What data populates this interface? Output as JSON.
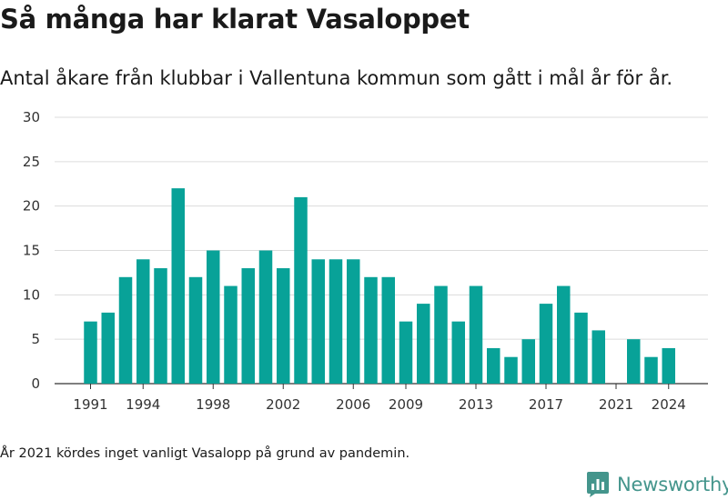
{
  "title": "Så många har klarat Vasaloppet",
  "subtitle": "Antal åkare från klubbar i Vallentuna kommun som gått i mål år för år.",
  "footnote": "År 2021 kördes inget vanligt Vasalopp på grund av pandemin.",
  "brand": {
    "name": "Newsworthy",
    "icon": "newsworthy-logo-icon",
    "color": "#44958c"
  },
  "chart_data": {
    "type": "bar",
    "bar_color": "#08a298",
    "x": [
      1991,
      1992,
      1993,
      1994,
      1995,
      1996,
      1997,
      1998,
      1999,
      2000,
      2001,
      2002,
      2003,
      2004,
      2005,
      2006,
      2007,
      2008,
      2009,
      2010,
      2011,
      2012,
      2013,
      2014,
      2015,
      2016,
      2017,
      2018,
      2019,
      2020,
      2021,
      2022,
      2023,
      2024
    ],
    "values": [
      7,
      8,
      12,
      14,
      13,
      22,
      12,
      15,
      11,
      13,
      15,
      13,
      21,
      14,
      14,
      14,
      12,
      12,
      7,
      9,
      11,
      7,
      11,
      4,
      3,
      5,
      9,
      11,
      8,
      6,
      0,
      5,
      3,
      4
    ],
    "x_ticks": [
      1991,
      1994,
      1998,
      2002,
      2006,
      2009,
      2013,
      2017,
      2021,
      2024
    ],
    "y_ticks": [
      0,
      5,
      10,
      15,
      20,
      25,
      30
    ],
    "ylim": [
      0,
      30
    ],
    "grid": true,
    "legend": "none"
  }
}
